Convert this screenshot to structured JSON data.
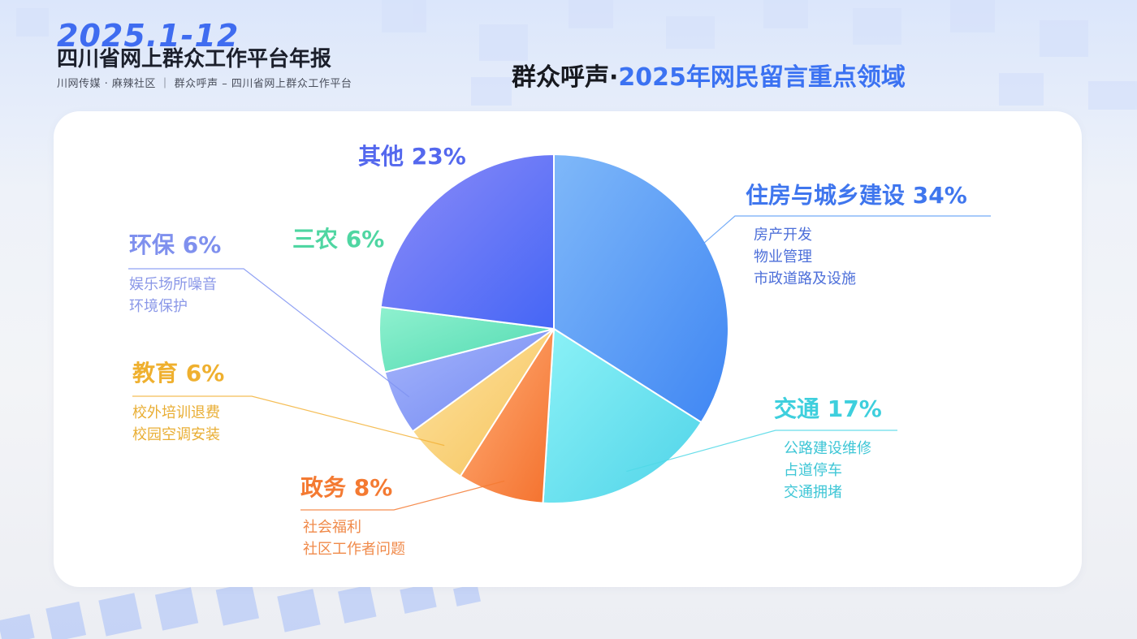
{
  "header": {
    "year": "2025.1-12",
    "title": "四川省网上群众工作平台年报",
    "subtitle": "川网传媒 · 麻辣社区 ｜ 群众呼声 – 四川省网上群众工作平台"
  },
  "page_title": {
    "part1": "群众呼声·",
    "part2": "2025年网民留言重点领域"
  },
  "colors": {
    "blue": "#3f6cf0",
    "housing": "#5a9cf7",
    "traffic": "#4fd8e6",
    "gov": "#f47a32",
    "edu": "#f3b33a",
    "env": "#7f93f2",
    "agri": "#58dcae",
    "other": "#5c6cf5"
  },
  "chart_data": {
    "type": "pie",
    "title": "群众呼声·2025年网民留言重点领域",
    "slices": [
      {
        "name": "住房与城乡建设",
        "value": 34,
        "label": "住房与城乡建设 34%",
        "items": [
          "房产开发",
          "物业管理",
          "市政道路及设施"
        ]
      },
      {
        "name": "交通",
        "value": 17,
        "label": "交通 17%",
        "items": [
          "公路建设维修",
          "占道停车",
          "交通拥堵"
        ]
      },
      {
        "name": "政务",
        "value": 8,
        "label": "政务 8%",
        "items": [
          "社会福利",
          "社区工作者问题"
        ]
      },
      {
        "name": "教育",
        "value": 6,
        "label": "教育 6%",
        "items": [
          "校外培训退费",
          "校园空调安装"
        ]
      },
      {
        "name": "环保",
        "value": 6,
        "label": "环保 6%",
        "items": [
          "娱乐场所噪音",
          "环境保护"
        ]
      },
      {
        "name": "三农",
        "value": 6,
        "label": "三农 6%",
        "items": []
      },
      {
        "name": "其他",
        "value": 23,
        "label": "其他 23%",
        "items": []
      }
    ]
  }
}
